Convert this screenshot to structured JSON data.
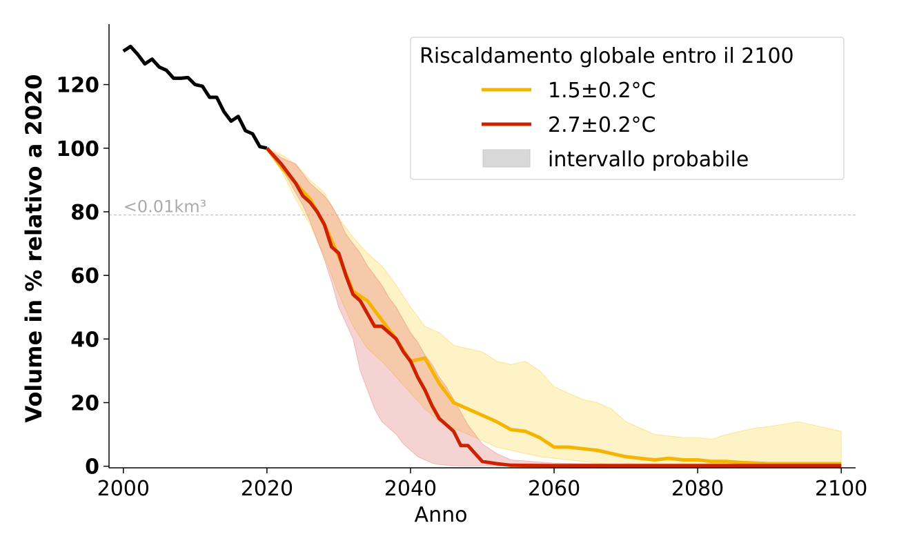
{
  "chart_data": {
    "type": "line",
    "xlabel": "Anno",
    "ylabel": "Volume in % relativo a 2020",
    "xlim": [
      1998,
      2102
    ],
    "ylim": [
      -0.5,
      139
    ],
    "xticks": [
      2000,
      2020,
      2040,
      2060,
      2080,
      2100
    ],
    "yticks": [
      0,
      20,
      40,
      60,
      80,
      100,
      120
    ],
    "grid": false,
    "threshold": {
      "y": 79,
      "label": "<0.01km³",
      "color": "#bbbbbb"
    },
    "legend": {
      "title": "Riscaldamento globale entro il 2100",
      "position": "top-right",
      "entries": [
        "1.5±0.2°C",
        "2.7±0.2°C",
        "intervallo probabile"
      ]
    },
    "band_legend_color": "#d8d8d8",
    "series": [
      {
        "name": "",
        "color": "#000000",
        "x": [
          2000,
          2001,
          2002,
          2003,
          2004,
          2005,
          2006,
          2007,
          2008,
          2009,
          2010,
          2011,
          2012,
          2013,
          2014,
          2015,
          2016,
          2017,
          2018,
          2019,
          2020
        ],
        "y": [
          130.5,
          132,
          129.5,
          126.5,
          128,
          125.5,
          124.5,
          122,
          122,
          122.2,
          120,
          119.5,
          116,
          116,
          111.5,
          108.5,
          110,
          105.5,
          104.5,
          100.5,
          100
        ]
      },
      {
        "name": "1.5±0.2°C",
        "color": "#f5b400",
        "band_color": "#f9c400",
        "x": [
          2020,
          2022,
          2024,
          2026,
          2028,
          2030,
          2032,
          2034,
          2036,
          2038,
          2040,
          2042,
          2044,
          2046,
          2048,
          2050,
          2052,
          2054,
          2056,
          2058,
          2060,
          2062,
          2064,
          2066,
          2068,
          2070,
          2072,
          2074,
          2076,
          2078,
          2080,
          2082,
          2084,
          2086,
          2088,
          2090,
          2094,
          2100
        ],
        "y": [
          100,
          94,
          89,
          84,
          76,
          66,
          55,
          52,
          46,
          40,
          33,
          34,
          26,
          20,
          18,
          16,
          14,
          11.5,
          11,
          9,
          6,
          6,
          5.5,
          5,
          4,
          3,
          2.5,
          2,
          2.5,
          2,
          2,
          1.5,
          1.5,
          1.2,
          1,
          0.8,
          0.8,
          0.8
        ],
        "band_upper": [
          100,
          98,
          95,
          90,
          86,
          78,
          72,
          67,
          63,
          57,
          50,
          44,
          42,
          38,
          37,
          36,
          33,
          32,
          33,
          30,
          25,
          23,
          21,
          20,
          18,
          14,
          12,
          10,
          9.5,
          9,
          9,
          8.5,
          10,
          11,
          12,
          12.5,
          14,
          11
        ],
        "band_lower": [
          100,
          93,
          84,
          76,
          66,
          54,
          44,
          37,
          33,
          28,
          23,
          18,
          14,
          12,
          10,
          8,
          6,
          5,
          4,
          3,
          2.5,
          2,
          1.5,
          1,
          0.5,
          0.3,
          0.2,
          0.1,
          0.1,
          0.1,
          0.1,
          0.1,
          0.1,
          0.1,
          0.1,
          0.1,
          0.1,
          0.1
        ]
      },
      {
        "name": "2.7±0.2°C",
        "color": "#cc2200",
        "band_color": "#e06060",
        "x": [
          2020,
          2022,
          2024,
          2025,
          2026,
          2027,
          2028,
          2029,
          2030,
          2031,
          2032,
          2033,
          2034,
          2035,
          2036,
          2037,
          2038,
          2039,
          2040,
          2041,
          2042,
          2043,
          2044,
          2045,
          2046,
          2047,
          2048,
          2049,
          2050,
          2052,
          2054,
          2060,
          2070,
          2080,
          2090,
          2100
        ],
        "y": [
          100,
          95,
          89,
          85,
          83,
          80,
          76,
          69,
          67,
          60,
          54,
          52,
          48,
          44,
          44,
          42,
          40,
          36,
          33,
          28,
          24,
          19,
          15,
          13,
          11,
          6.5,
          6.5,
          4,
          1.5,
          0.8,
          0.3,
          0.2,
          0.2,
          0.2,
          0.2,
          0.2
        ],
        "band_upper": [
          100,
          97,
          95,
          92,
          89,
          87,
          85,
          82,
          78,
          73,
          70,
          67,
          63,
          60,
          57,
          53,
          50,
          46,
          42,
          39,
          35,
          32,
          28,
          25,
          21,
          17,
          13,
          10,
          7,
          4,
          2,
          1,
          0.5,
          0.4,
          0.3,
          0.3
        ],
        "band_lower": [
          100,
          94,
          86,
          82,
          77,
          71,
          65,
          58,
          50,
          45,
          40,
          30,
          24,
          18,
          14,
          12,
          10,
          7,
          5,
          3,
          2,
          1,
          0.5,
          0.3,
          0.2,
          0.1,
          0.1,
          0.1,
          0.1,
          0.1,
          0.1,
          0.1,
          0.1,
          0.1,
          0.1,
          0.1
        ]
      }
    ]
  }
}
